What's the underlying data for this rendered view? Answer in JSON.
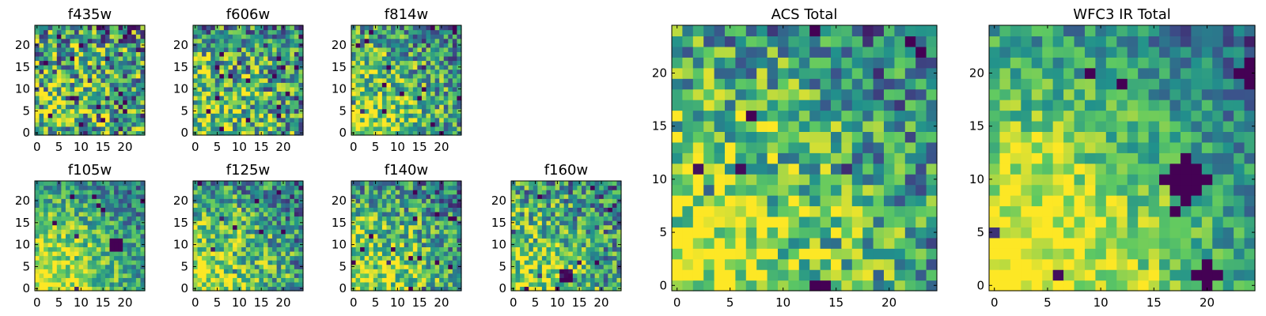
{
  "colormap": [
    "#440154",
    "#3b528b",
    "#21918c",
    "#5ec962",
    "#fde725"
  ],
  "chart_data": [
    {
      "type": "heatmap",
      "title": "f435w",
      "grid": 25,
      "xticks": [
        "0",
        "5",
        "10",
        "15",
        "20"
      ],
      "yticks": [
        "0",
        "5",
        "10",
        "15",
        "20"
      ],
      "seed": 11,
      "gradient": 0.25,
      "noise": 0.95,
      "blobs": [],
      "holes": 0.04
    },
    {
      "type": "heatmap",
      "title": "f606w",
      "grid": 25,
      "xticks": [
        "0",
        "5",
        "10",
        "15",
        "20"
      ],
      "yticks": [
        "0",
        "5",
        "10",
        "15",
        "20"
      ],
      "seed": 23,
      "gradient": 0.45,
      "noise": 0.85,
      "blobs": [],
      "holes": 0.03
    },
    {
      "type": "heatmap",
      "title": "f814w",
      "grid": 25,
      "xticks": [
        "0",
        "5",
        "10",
        "15",
        "20"
      ],
      "yticks": [
        "0",
        "5",
        "10",
        "15",
        "20"
      ],
      "seed": 37,
      "gradient": 0.6,
      "noise": 0.75,
      "blobs": [],
      "holes": 0.025
    },
    {
      "type": "heatmap",
      "title": "f105w",
      "grid": 25,
      "xticks": [
        "0",
        "5",
        "10",
        "15",
        "20"
      ],
      "yticks": [
        "0",
        "5",
        "10",
        "15",
        "20"
      ],
      "seed": 41,
      "gradient": 0.7,
      "noise": 0.55,
      "blobs": [
        [
          18,
          10,
          1.2
        ]
      ],
      "holes": 0.01
    },
    {
      "type": "heatmap",
      "title": "f125w",
      "grid": 25,
      "xticks": [
        "0",
        "5",
        "10",
        "15",
        "20"
      ],
      "yticks": [
        "0",
        "5",
        "10",
        "15",
        "20"
      ],
      "seed": 53,
      "gradient": 0.6,
      "noise": 0.7,
      "blobs": [],
      "holes": 0.02
    },
    {
      "type": "heatmap",
      "title": "f140w",
      "grid": 25,
      "xticks": [
        "0",
        "5",
        "10",
        "15",
        "20"
      ],
      "yticks": [
        "0",
        "5",
        "10",
        "15",
        "20"
      ],
      "seed": 67,
      "gradient": 0.6,
      "noise": 0.7,
      "blobs": [],
      "holes": 0.02
    },
    {
      "type": "heatmap",
      "title": "f160w",
      "grid": 25,
      "xticks": [
        "0",
        "5",
        "10",
        "15",
        "20"
      ],
      "yticks": [
        "0",
        "5",
        "10",
        "15",
        "20"
      ],
      "seed": 79,
      "gradient": 0.55,
      "noise": 0.75,
      "blobs": [
        [
          12,
          3,
          1.0
        ]
      ],
      "holes": 0.02
    },
    {
      "type": "heatmap",
      "title": "ACS Total",
      "grid": 25,
      "xticks": [
        "0",
        "5",
        "10",
        "15",
        "20"
      ],
      "yticks": [
        "0",
        "5",
        "10",
        "15",
        "20"
      ],
      "seed": 97,
      "gradient": 0.65,
      "noise": 0.7,
      "blobs": [],
      "holes": 0.02
    },
    {
      "type": "heatmap",
      "title": "WFC3 IR Total",
      "grid": 25,
      "xticks": [
        "0",
        "5",
        "10",
        "15",
        "20"
      ],
      "yticks": [
        "0",
        "5",
        "10",
        "15",
        "20"
      ],
      "seed": 113,
      "gradient": 0.9,
      "noise": 0.45,
      "blobs": [
        [
          18,
          10,
          1.5
        ],
        [
          20,
          1,
          0.8
        ],
        [
          24,
          20,
          0.8
        ]
      ],
      "holes": 0.01
    }
  ]
}
